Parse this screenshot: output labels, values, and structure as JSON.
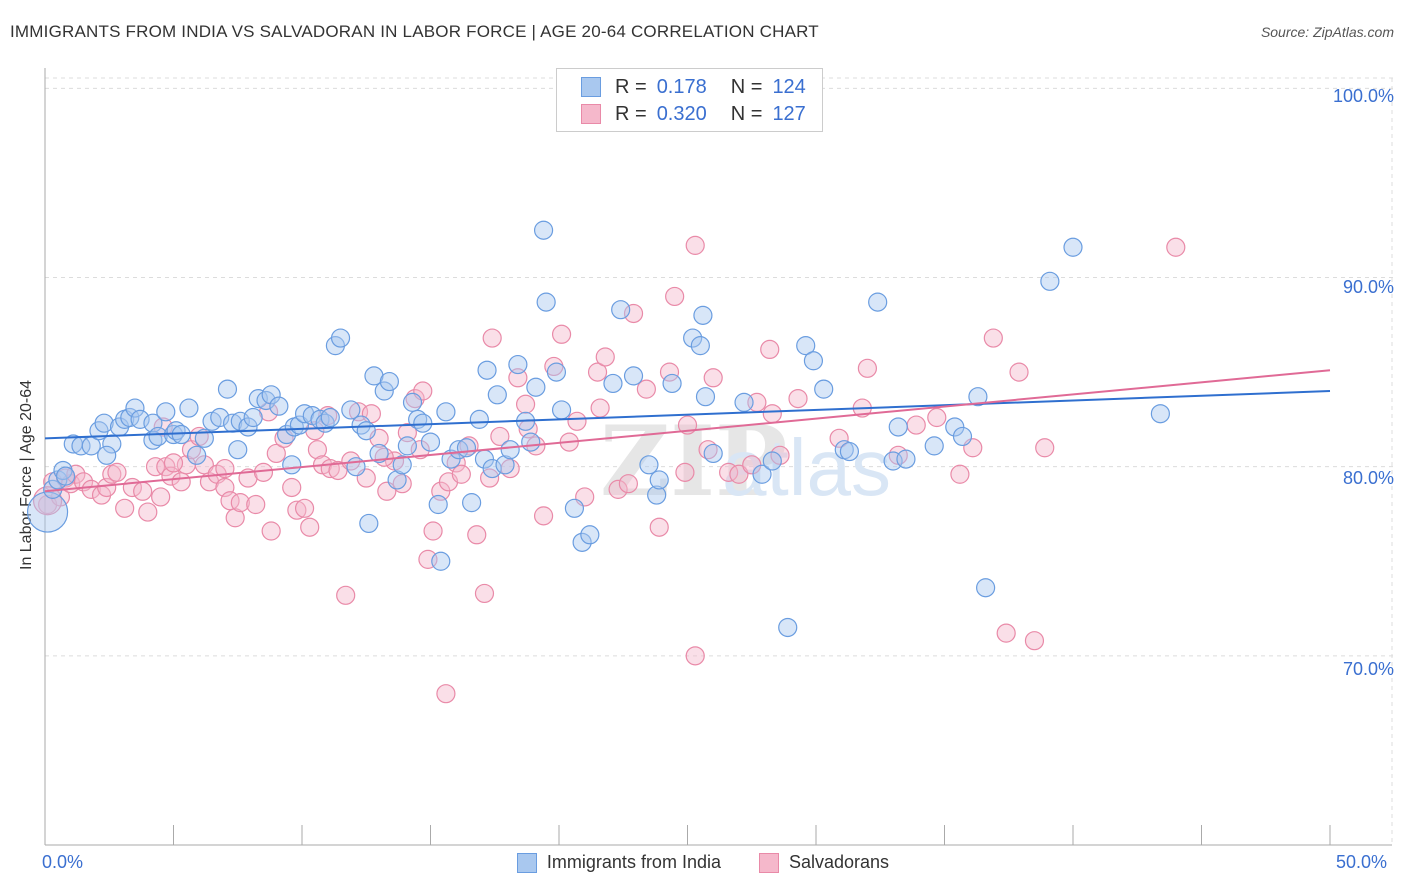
{
  "header": {
    "title": "IMMIGRANTS FROM INDIA VS SALVADORAN IN LABOR FORCE | AGE 20-64 CORRELATION CHART",
    "source": "Source: ZipAtlas.com"
  },
  "legend": {
    "rows": [
      {
        "r_label": "R =",
        "r_value": "0.178",
        "n_label": "N =",
        "n_value": "124"
      },
      {
        "r_label": "R =",
        "r_value": "0.320",
        "n_label": "N =",
        "n_value": "127"
      }
    ]
  },
  "watermark": {
    "zip": "ZIP",
    "atlas": "atlas"
  },
  "colors": {
    "blue_fill": "#a9c8ef",
    "blue_stroke": "#6a9de0",
    "blue_line": "#2f6fcf",
    "pink_fill": "#f5b8cb",
    "pink_stroke": "#e98aa8",
    "pink_line": "#e06a96",
    "tick_label": "#3a6fd0"
  },
  "chart_data": {
    "type": "scatter",
    "title": "IMMIGRANTS FROM INDIA VS SALVADORAN IN LABOR FORCE | AGE 20-64 CORRELATION CHART",
    "xlabel": "",
    "ylabel": "In Labor Force | Age 20-64",
    "xlim": [
      0,
      50
    ],
    "ylim": [
      60,
      101.5
    ],
    "x_tick_labels": [
      "0.0%",
      "50.0%"
    ],
    "y_ticks": [
      70,
      80,
      90,
      100
    ],
    "y_tick_labels": [
      "70.0%",
      "80.0%",
      "90.0%",
      "100.0%"
    ],
    "grid": true,
    "legend_position": "top-center",
    "series": [
      {
        "name": "Immigrants from India",
        "color": "#6a9de0",
        "trend": {
          "x": [
            0,
            50
          ],
          "y": [
            81.5,
            84.0
          ]
        },
        "points": [
          [
            0.1,
            77.6
          ],
          [
            0.3,
            78.8
          ],
          [
            0.5,
            79.3
          ],
          [
            0.7,
            79.8
          ],
          [
            0.8,
            79.5
          ],
          [
            1.1,
            81.2
          ],
          [
            1.4,
            81.1
          ],
          [
            1.8,
            81.1
          ],
          [
            2.1,
            81.9
          ],
          [
            2.3,
            82.3
          ],
          [
            2.6,
            81.2
          ],
          [
            2.9,
            82.1
          ],
          [
            3.1,
            82.5
          ],
          [
            3.3,
            82.6
          ],
          [
            3.5,
            83.1
          ],
          [
            3.7,
            82.5
          ],
          [
            4.2,
            82.3
          ],
          [
            4.2,
            81.4
          ],
          [
            4.4,
            81.6
          ],
          [
            4.7,
            82.9
          ],
          [
            5.0,
            81.7
          ],
          [
            5.1,
            81.9
          ],
          [
            5.3,
            81.7
          ],
          [
            5.6,
            83.1
          ],
          [
            5.9,
            80.6
          ],
          [
            6.2,
            81.5
          ],
          [
            6.5,
            82.4
          ],
          [
            6.8,
            82.6
          ],
          [
            7.1,
            84.1
          ],
          [
            7.3,
            82.3
          ],
          [
            7.6,
            82.4
          ],
          [
            7.9,
            82.1
          ],
          [
            8.1,
            82.6
          ],
          [
            8.3,
            83.6
          ],
          [
            8.6,
            83.5
          ],
          [
            8.8,
            83.8
          ],
          [
            9.1,
            83.2
          ],
          [
            9.4,
            81.7
          ],
          [
            9.7,
            82.1
          ],
          [
            9.9,
            82.2
          ],
          [
            10.1,
            82.8
          ],
          [
            10.4,
            82.7
          ],
          [
            10.7,
            82.5
          ],
          [
            10.9,
            82.3
          ],
          [
            11.1,
            82.6
          ],
          [
            11.3,
            86.4
          ],
          [
            11.5,
            86.8
          ],
          [
            11.9,
            83.0
          ],
          [
            12.1,
            80.0
          ],
          [
            12.3,
            82.2
          ],
          [
            12.6,
            77.0
          ],
          [
            12.8,
            84.8
          ],
          [
            13.0,
            80.7
          ],
          [
            13.2,
            84.0
          ],
          [
            13.4,
            84.5
          ],
          [
            13.7,
            79.3
          ],
          [
            13.9,
            80.1
          ],
          [
            14.1,
            81.1
          ],
          [
            14.3,
            83.4
          ],
          [
            14.5,
            82.5
          ],
          [
            14.7,
            82.3
          ],
          [
            15.0,
            81.3
          ],
          [
            15.3,
            78.0
          ],
          [
            15.4,
            75.0
          ],
          [
            15.6,
            82.9
          ],
          [
            15.8,
            80.4
          ],
          [
            16.1,
            80.9
          ],
          [
            16.4,
            81.0
          ],
          [
            16.6,
            78.1
          ],
          [
            16.9,
            82.5
          ],
          [
            17.1,
            80.4
          ],
          [
            17.4,
            79.9
          ],
          [
            17.6,
            83.8
          ],
          [
            17.9,
            80.1
          ],
          [
            18.1,
            80.9
          ],
          [
            18.4,
            85.4
          ],
          [
            18.7,
            82.4
          ],
          [
            18.9,
            81.3
          ],
          [
            19.1,
            84.2
          ],
          [
            19.4,
            92.5
          ],
          [
            19.5,
            88.7
          ],
          [
            19.9,
            85.0
          ],
          [
            20.1,
            83.0
          ],
          [
            20.6,
            77.8
          ],
          [
            20.9,
            76.0
          ],
          [
            21.2,
            76.4
          ],
          [
            22.1,
            84.4
          ],
          [
            22.4,
            88.3
          ],
          [
            22.9,
            84.8
          ],
          [
            23.5,
            80.1
          ],
          [
            23.8,
            78.5
          ],
          [
            24.4,
            84.4
          ],
          [
            25.2,
            86.8
          ],
          [
            25.5,
            86.4
          ],
          [
            25.6,
            88.0
          ],
          [
            25.7,
            83.7
          ],
          [
            27.2,
            83.4
          ],
          [
            27.9,
            79.6
          ],
          [
            28.3,
            80.3
          ],
          [
            28.9,
            71.5
          ],
          [
            29.6,
            86.4
          ],
          [
            29.9,
            85.6
          ],
          [
            30.3,
            84.1
          ],
          [
            31.1,
            80.9
          ],
          [
            32.4,
            88.7
          ],
          [
            33.0,
            80.3
          ],
          [
            33.2,
            82.1
          ],
          [
            33.5,
            80.4
          ],
          [
            34.6,
            81.1
          ],
          [
            35.4,
            82.1
          ],
          [
            35.7,
            81.6
          ],
          [
            36.3,
            83.7
          ],
          [
            36.6,
            73.6
          ],
          [
            39.1,
            89.8
          ],
          [
            40.0,
            91.6
          ],
          [
            43.4,
            82.8
          ],
          [
            23.9,
            79.3
          ],
          [
            7.5,
            80.9
          ],
          [
            12.5,
            81.9
          ],
          [
            17.2,
            85.1
          ],
          [
            26.0,
            80.7
          ],
          [
            31.3,
            80.8
          ],
          [
            9.6,
            80.1
          ],
          [
            2.4,
            80.6
          ]
        ]
      },
      {
        "name": "Salvadorans",
        "color": "#e98aa8",
        "trend": {
          "x": [
            0,
            50
          ],
          "y": [
            78.7,
            85.1
          ]
        },
        "points": [
          [
            0.1,
            78.0
          ],
          [
            0.3,
            79.2
          ],
          [
            0.6,
            78.4
          ],
          [
            0.8,
            79.4
          ],
          [
            1.0,
            79.1
          ],
          [
            1.2,
            79.6
          ],
          [
            1.5,
            79.2
          ],
          [
            1.8,
            78.8
          ],
          [
            2.2,
            78.5
          ],
          [
            2.4,
            78.9
          ],
          [
            2.6,
            79.6
          ],
          [
            2.8,
            79.7
          ],
          [
            3.1,
            77.8
          ],
          [
            3.4,
            78.9
          ],
          [
            3.8,
            78.7
          ],
          [
            4.0,
            77.6
          ],
          [
            4.3,
            80.0
          ],
          [
            4.5,
            78.4
          ],
          [
            4.7,
            80.0
          ],
          [
            4.9,
            79.5
          ],
          [
            5.3,
            79.2
          ],
          [
            5.5,
            80.1
          ],
          [
            5.7,
            80.9
          ],
          [
            6.0,
            81.6
          ],
          [
            6.2,
            80.1
          ],
          [
            6.4,
            79.2
          ],
          [
            6.7,
            79.6
          ],
          [
            7.0,
            78.9
          ],
          [
            7.2,
            78.2
          ],
          [
            7.4,
            77.3
          ],
          [
            7.6,
            78.1
          ],
          [
            7.9,
            79.4
          ],
          [
            8.2,
            78.0
          ],
          [
            8.5,
            79.7
          ],
          [
            8.8,
            76.6
          ],
          [
            9.0,
            80.7
          ],
          [
            9.3,
            81.5
          ],
          [
            9.6,
            78.9
          ],
          [
            9.8,
            77.7
          ],
          [
            10.1,
            77.8
          ],
          [
            10.3,
            76.8
          ],
          [
            10.6,
            80.9
          ],
          [
            10.8,
            80.1
          ],
          [
            11.1,
            79.9
          ],
          [
            11.4,
            79.8
          ],
          [
            11.7,
            73.2
          ],
          [
            11.9,
            80.3
          ],
          [
            12.2,
            82.9
          ],
          [
            12.5,
            79.4
          ],
          [
            12.7,
            82.8
          ],
          [
            13.0,
            81.5
          ],
          [
            13.3,
            78.7
          ],
          [
            13.6,
            80.3
          ],
          [
            13.9,
            79.1
          ],
          [
            14.1,
            81.8
          ],
          [
            14.4,
            83.6
          ],
          [
            14.6,
            80.9
          ],
          [
            14.9,
            75.1
          ],
          [
            15.1,
            76.6
          ],
          [
            15.4,
            78.7
          ],
          [
            15.7,
            79.2
          ],
          [
            16.0,
            80.2
          ],
          [
            16.2,
            79.6
          ],
          [
            16.5,
            81.1
          ],
          [
            16.8,
            76.4
          ],
          [
            17.1,
            73.3
          ],
          [
            17.4,
            86.8
          ],
          [
            17.7,
            81.6
          ],
          [
            18.1,
            79.9
          ],
          [
            18.4,
            84.7
          ],
          [
            18.7,
            83.3
          ],
          [
            19.1,
            81.1
          ],
          [
            19.4,
            77.4
          ],
          [
            19.8,
            85.3
          ],
          [
            20.1,
            87.0
          ],
          [
            20.4,
            81.3
          ],
          [
            20.7,
            82.4
          ],
          [
            21.0,
            78.4
          ],
          [
            21.5,
            85.0
          ],
          [
            21.8,
            85.8
          ],
          [
            22.3,
            78.8
          ],
          [
            22.9,
            88.1
          ],
          [
            23.4,
            84.1
          ],
          [
            23.9,
            76.8
          ],
          [
            24.3,
            85.0
          ],
          [
            24.5,
            89.0
          ],
          [
            25.0,
            82.2
          ],
          [
            25.3,
            70.0
          ],
          [
            25.8,
            80.9
          ],
          [
            26.0,
            84.7
          ],
          [
            26.6,
            79.7
          ],
          [
            27.0,
            79.6
          ],
          [
            27.5,
            80.1
          ],
          [
            27.7,
            83.4
          ],
          [
            28.2,
            86.2
          ],
          [
            28.3,
            82.8
          ],
          [
            30.9,
            81.5
          ],
          [
            32.0,
            85.2
          ],
          [
            33.2,
            80.6
          ],
          [
            34.7,
            82.6
          ],
          [
            36.1,
            81.0
          ],
          [
            37.4,
            71.2
          ],
          [
            38.5,
            70.8
          ],
          [
            38.9,
            81.0
          ],
          [
            37.9,
            85.0
          ],
          [
            36.9,
            86.8
          ],
          [
            44.0,
            91.6
          ],
          [
            25.3,
            91.7
          ],
          [
            15.6,
            68.0
          ],
          [
            5.0,
            80.2
          ],
          [
            8.7,
            82.9
          ],
          [
            13.2,
            80.5
          ],
          [
            18.8,
            82.0
          ],
          [
            21.6,
            83.1
          ],
          [
            22.7,
            79.1
          ],
          [
            29.3,
            83.6
          ],
          [
            31.8,
            83.1
          ],
          [
            33.9,
            82.2
          ],
          [
            35.6,
            79.6
          ],
          [
            4.6,
            82.1
          ],
          [
            7.0,
            79.9
          ],
          [
            11.0,
            82.7
          ],
          [
            14.7,
            84.0
          ],
          [
            17.3,
            79.4
          ],
          [
            24.9,
            79.7
          ],
          [
            28.6,
            80.6
          ],
          [
            10.5,
            81.9
          ]
        ]
      }
    ]
  },
  "bottom_legend": {
    "items": [
      {
        "label": "Immigrants from India"
      },
      {
        "label": "Salvadorans"
      }
    ]
  },
  "axes": {
    "x_left_label": "0.0%",
    "x_right_label": "50.0%",
    "y_labels": [
      "100.0%",
      "90.0%",
      "80.0%",
      "70.0%"
    ]
  }
}
